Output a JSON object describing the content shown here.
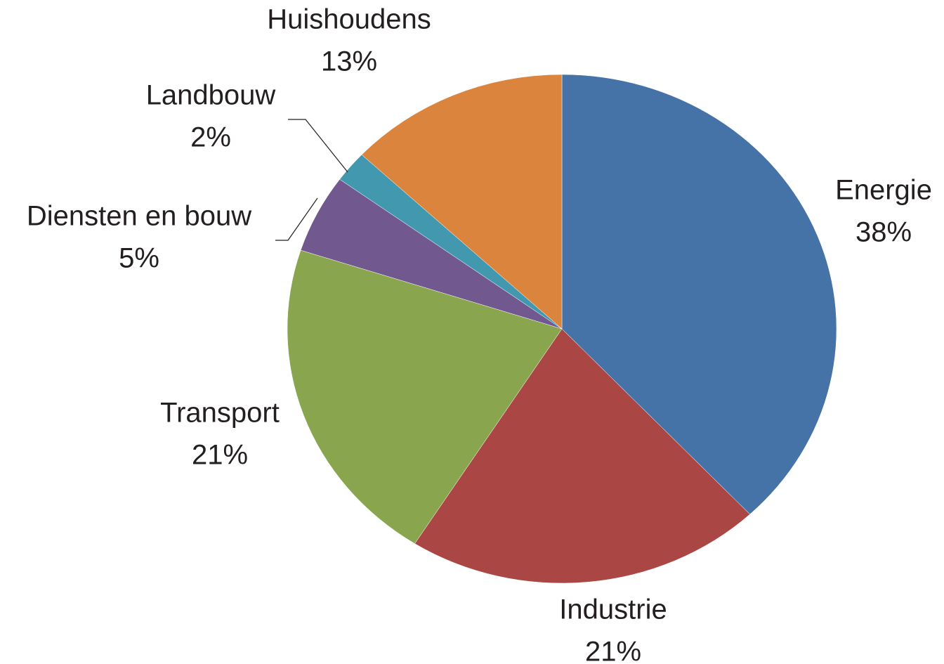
{
  "chart_data": {
    "type": "pie",
    "categories": [
      "Energie",
      "Industrie",
      "Transport",
      "Diensten en bouw",
      "Landbouw",
      "Huishoudens"
    ],
    "values": [
      38,
      21,
      21,
      5,
      2,
      13
    ],
    "value_labels": [
      "38%",
      "21%",
      "21%",
      "5%",
      "2%",
      "13%"
    ],
    "colors": [
      "#4572a7",
      "#aa4643",
      "#89a54e",
      "#71588f",
      "#4198af",
      "#db843d"
    ]
  }
}
